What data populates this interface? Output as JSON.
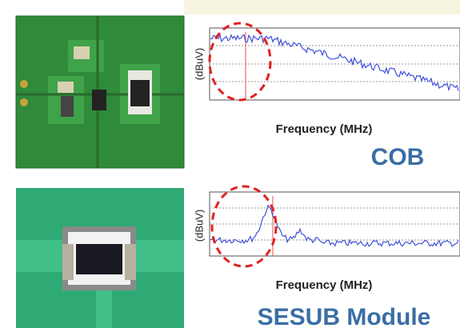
{
  "top_panel": {
    "y_axis_label": "(dBuV)",
    "x_axis_label": "Frequency (MHz)",
    "caption": "COB"
  },
  "bottom_panel": {
    "y_axis_label": "(dBuV)",
    "x_axis_label": "Frequency (MHz)",
    "caption": "SESUB Module"
  }
}
